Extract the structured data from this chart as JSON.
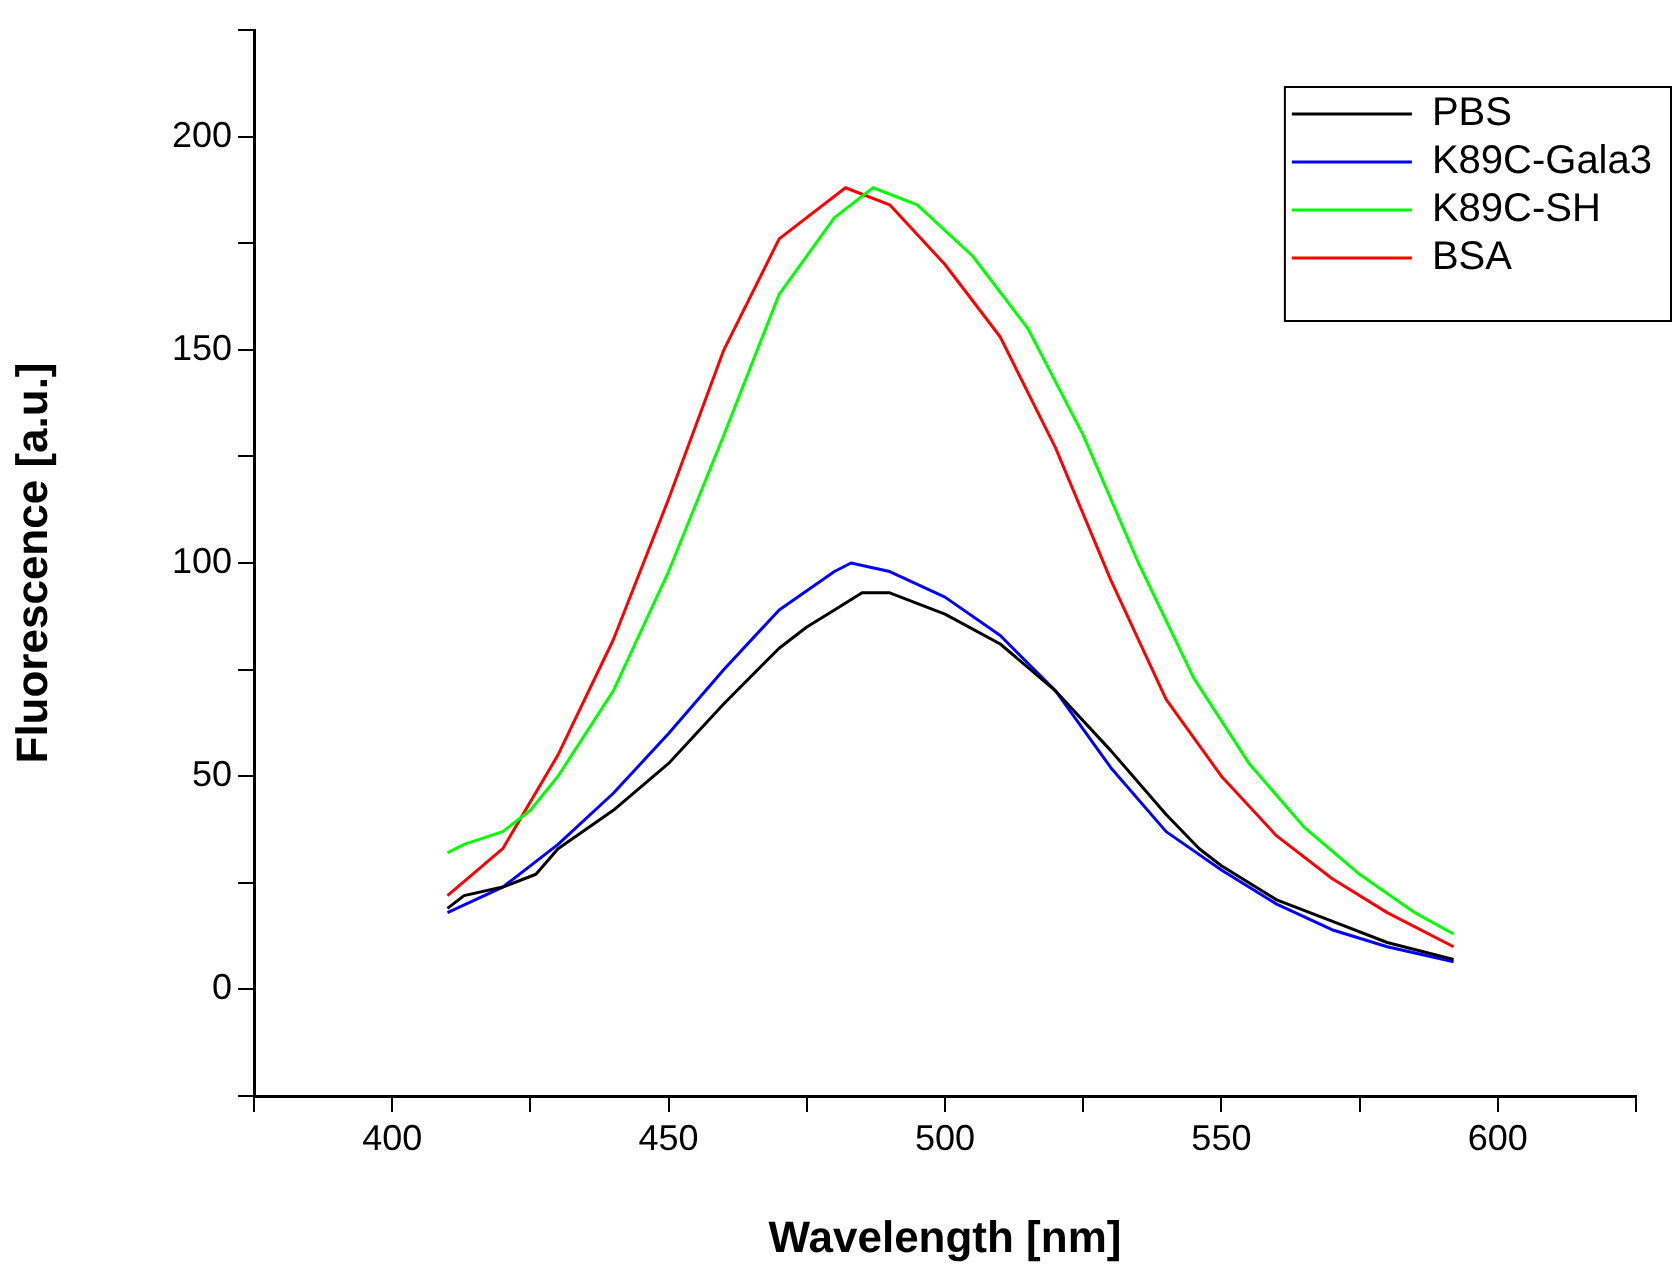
{
  "chart_data": {
    "type": "line",
    "xlabel": "Wavelength [nm]",
    "ylabel": "Fluorescence [a.u.]",
    "xlim": [
      375,
      625
    ],
    "xticks": [
      {
        "value": 375,
        "label": null
      },
      400,
      {
        "value": 425,
        "label": null
      },
      450,
      {
        "value": 475,
        "label": null
      },
      500,
      {
        "value": 525,
        "label": null
      },
      550,
      {
        "value": 575,
        "label": null
      },
      600,
      {
        "value": 625,
        "label": null
      }
    ],
    "ylim": [
      -25,
      225
    ],
    "yticks": [
      {
        "value": -25,
        "label": null
      },
      0,
      {
        "value": 25,
        "label": null
      },
      50,
      {
        "value": 75,
        "label": null
      },
      100,
      {
        "value": 125,
        "label": null
      },
      150,
      {
        "value": 175,
        "label": null
      },
      200,
      {
        "value": 225,
        "label": null
      }
    ],
    "grid": false,
    "legend": "top right",
    "marker": "none",
    "line_style": "solid",
    "series": [
      {
        "name": "PBS",
        "color": "#000000",
        "x": [
          410,
          413,
          420,
          426,
          430,
          440,
          450,
          460,
          470,
          475,
          480,
          485,
          490,
          500,
          510,
          520,
          530,
          540,
          546,
          550,
          560,
          570,
          580,
          592
        ],
        "values": [
          19,
          22,
          24,
          27,
          33,
          42,
          53,
          67,
          80,
          85,
          89,
          93,
          93,
          88,
          81,
          70,
          56,
          41,
          33,
          29,
          21,
          16,
          11,
          7
        ]
      },
      {
        "name": "K89C-Gala3",
        "color": "#0000ff",
        "x": [
          410,
          420,
          430,
          440,
          450,
          460,
          470,
          480,
          483,
          490,
          500,
          510,
          520,
          530,
          540,
          550,
          560,
          570,
          580,
          592
        ],
        "values": [
          18,
          24,
          34,
          46,
          60,
          75,
          89,
          98,
          100,
          98,
          92,
          83,
          70,
          52,
          37,
          28,
          20,
          14,
          10,
          6.5
        ]
      },
      {
        "name": "K89C-SH",
        "color": "#00ff00",
        "x": [
          410,
          413,
          420,
          425,
          430,
          440,
          450,
          460,
          470,
          480,
          487,
          495,
          505,
          515,
          525,
          535,
          545,
          555,
          565,
          575,
          585,
          592
        ],
        "values": [
          32,
          34,
          37,
          42,
          50,
          70,
          98,
          130,
          163,
          181,
          188,
          184,
          172,
          155,
          130,
          100,
          73,
          53,
          38,
          27,
          18,
          13
        ]
      },
      {
        "name": "BSA",
        "color": "#ff0000",
        "x": [
          410,
          420,
          430,
          440,
          450,
          460,
          470,
          482,
          490,
          500,
          510,
          520,
          530,
          540,
          550,
          560,
          570,
          580,
          592
        ],
        "values": [
          22,
          33,
          55,
          82,
          115,
          150,
          176,
          188,
          184,
          170,
          153,
          127,
          96,
          68,
          50,
          36,
          26,
          18,
          10
        ]
      }
    ]
  }
}
